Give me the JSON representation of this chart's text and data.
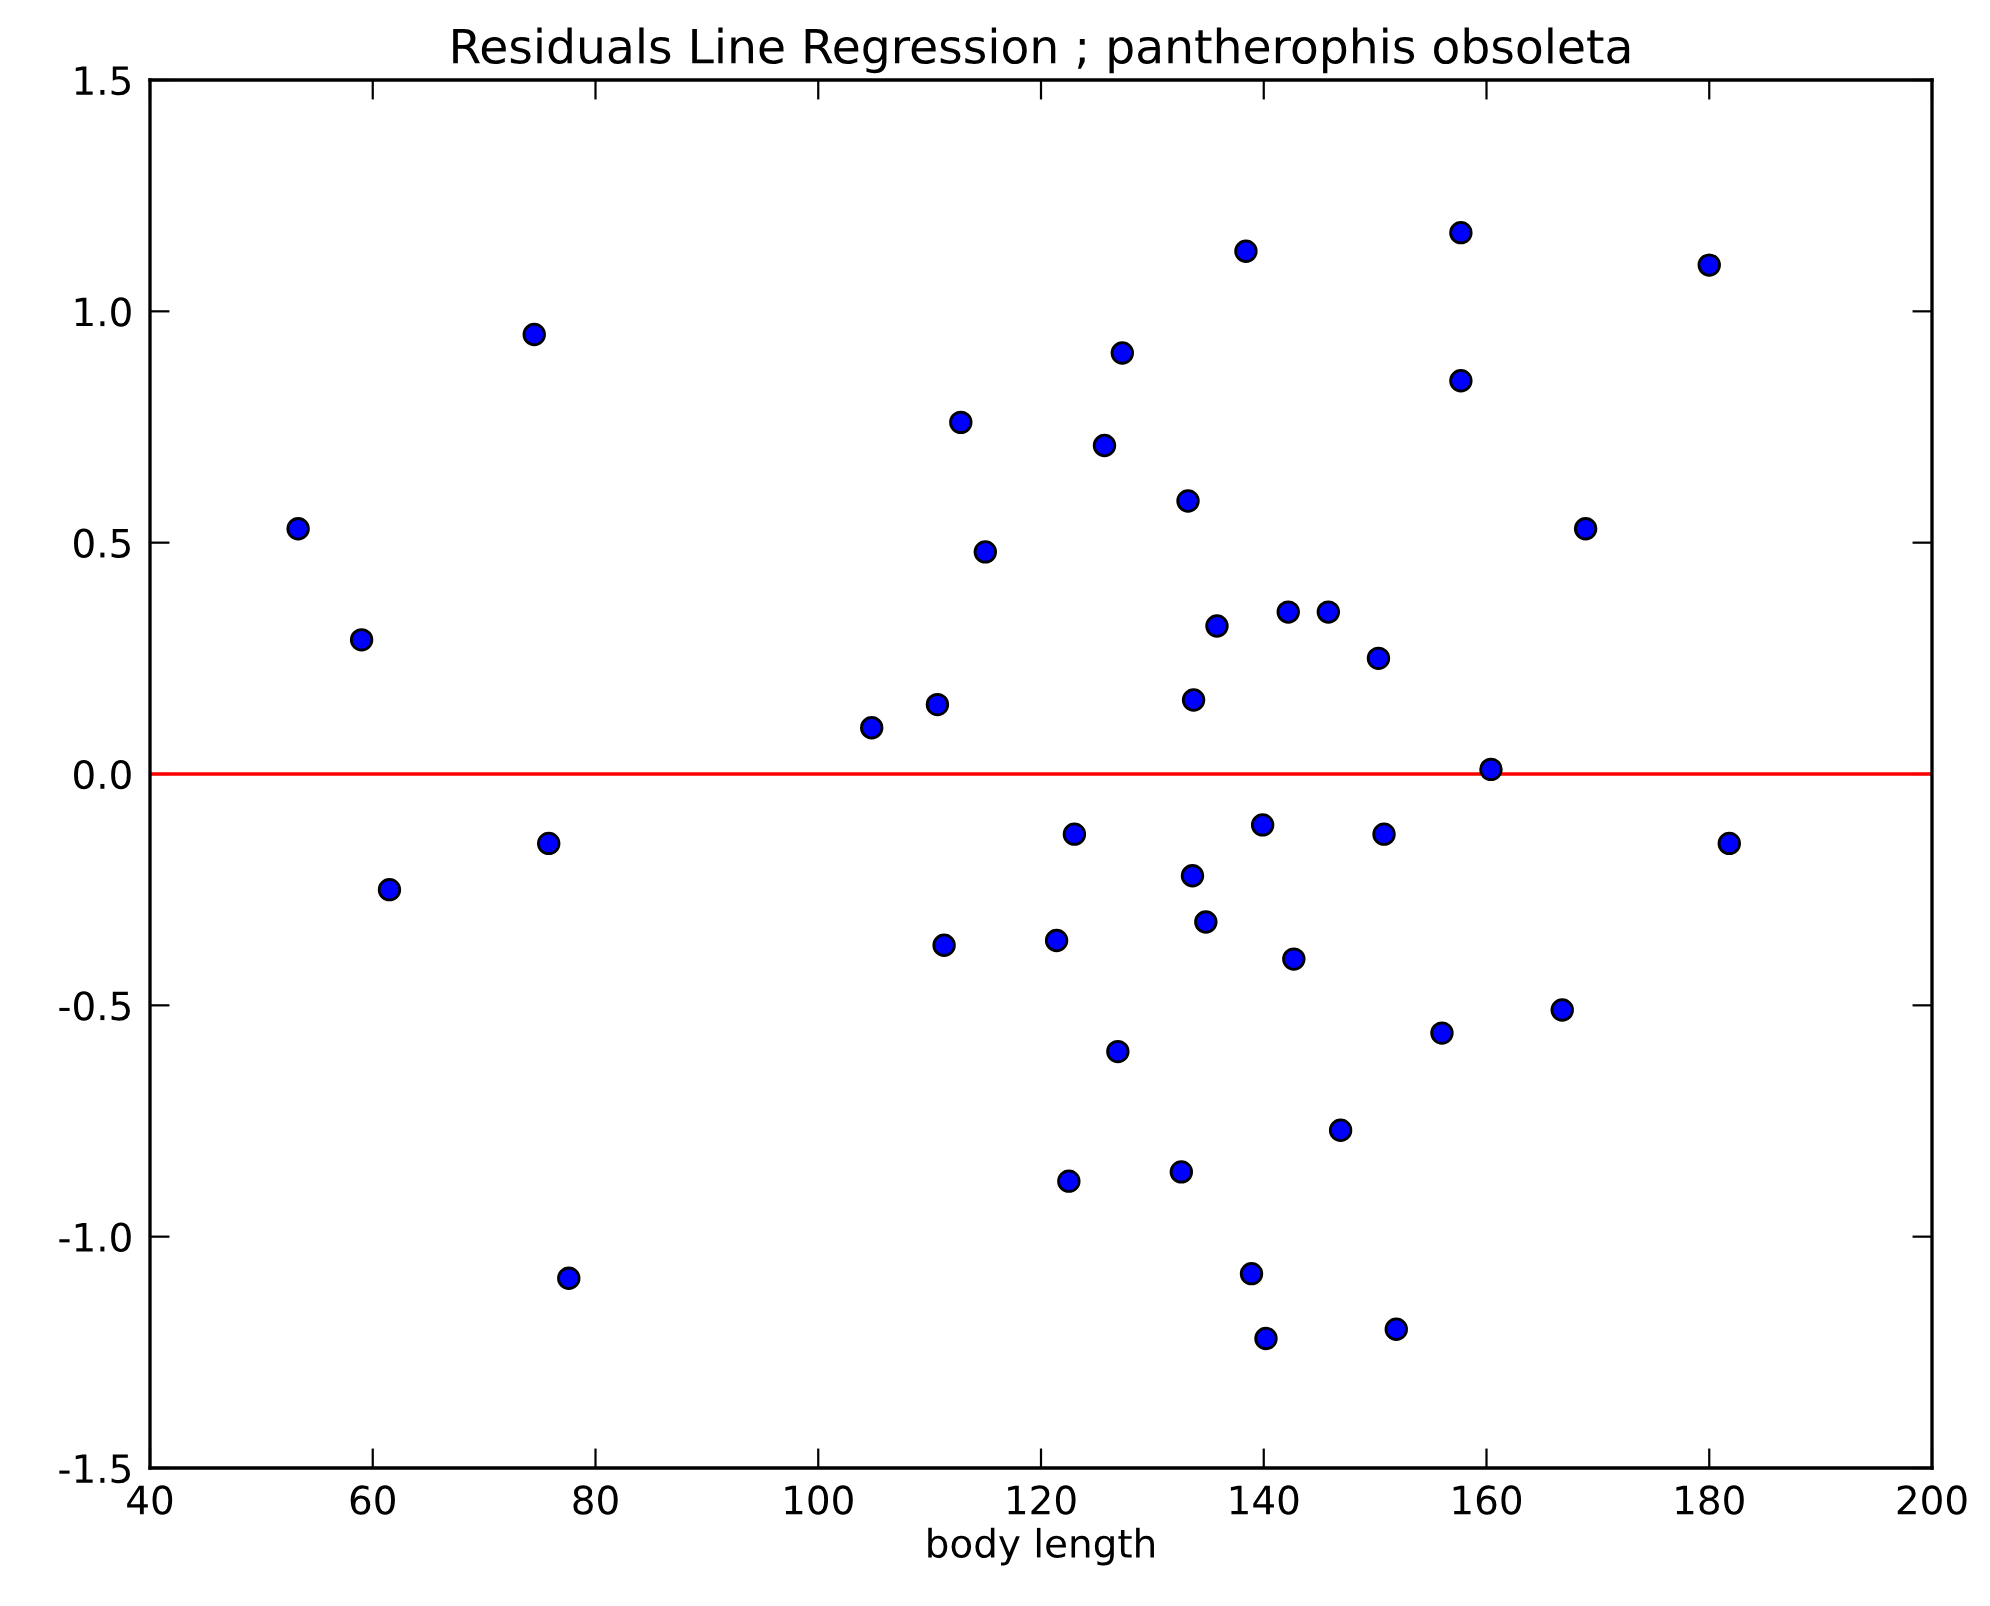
{
  "chart_data": {
    "type": "scatter",
    "title": "Residuals Line Regression ; pantherophis obsoleta",
    "xlabel": "body length",
    "x": [
      53.3,
      59,
      74.5,
      104.8,
      110.7,
      112.8,
      115,
      125.7,
      127.3,
      133.2,
      133.7,
      135.8,
      138.4,
      142.2,
      145.8,
      150.3,
      157.7,
      157.7,
      160.4,
      168.9,
      180,
      61.5,
      75.8,
      77.6,
      111.3,
      121.4,
      123,
      122.5,
      126.9,
      132.6,
      133.6,
      134.8,
      139.9,
      142.7,
      138.9,
      140.2,
      146.9,
      150.8,
      151.9,
      156,
      166.8,
      181.8
    ],
    "values": [
      0.53,
      0.29,
      0.95,
      0.1,
      0.15,
      0.76,
      0.48,
      0.71,
      0.91,
      0.59,
      0.16,
      0.32,
      1.13,
      0.35,
      0.35,
      0.25,
      1.17,
      0.85,
      0.01,
      0.53,
      1.1,
      -0.25,
      -0.15,
      -1.09,
      -0.37,
      -0.36,
      -0.13,
      -0.88,
      -0.6,
      -0.86,
      -0.22,
      -0.32,
      -0.11,
      -0.4,
      -1.08,
      -1.22,
      -0.77,
      -0.13,
      -1.2,
      -0.56,
      -0.51,
      -0.15
    ],
    "color": "#0000ff",
    "marker": "circle",
    "xlim": [
      40,
      200
    ],
    "xticks": [
      40,
      60,
      80,
      100,
      120,
      140,
      160,
      180,
      200
    ],
    "ylim": [
      -1.5,
      1.5
    ],
    "yticks": [
      -1.5,
      {
        "value": -1,
        "label": "-1.0"
      },
      -0.5,
      {
        "value": 0,
        "label": "0.0"
      },
      0.5,
      {
        "value": 1,
        "label": "1.0"
      },
      1.5
    ],
    "ref_lines": [
      {
        "axis": "y",
        "value": 0,
        "color": "#ff0000",
        "line_style": "solid"
      }
    ],
    "grid": false
  }
}
